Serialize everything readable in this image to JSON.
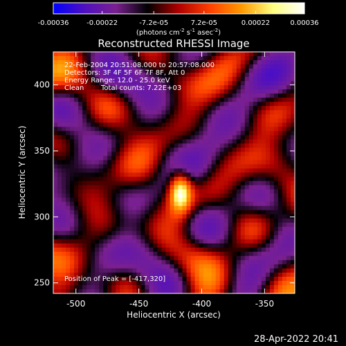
{
  "colorbar": {
    "ticks": [
      "-0.00036",
      "-0.00022",
      "-7.2e-05",
      "7.2e-05",
      "0.00022",
      "0.00036"
    ],
    "tick_values": [
      -0.00036,
      -0.00022,
      -7.2e-05,
      7.2e-05,
      0.00022,
      0.00036
    ],
    "range": [
      -0.00036,
      0.00036
    ],
    "unit_prefix": "(photons cm",
    "unit_exp1": "-2",
    "unit_mid": " s",
    "unit_exp2": "-1",
    "unit_mid2": " asec",
    "unit_exp3": "-2",
    "unit_suffix": ")",
    "colors": [
      "#0000ff",
      "#5010c0",
      "#7a2090",
      "#000000",
      "#b00000",
      "#ff4000",
      "#ff9a00",
      "#ffff80",
      "#ffffff"
    ]
  },
  "chart_data": {
    "type": "heatmap",
    "title": "Reconstructed RHESSI Image",
    "xlabel": "Heliocentric X (arcsec)",
    "ylabel": "Heliocentric Y (arcsec)",
    "xlim": [
      -518,
      -326
    ],
    "ylim": [
      242,
      425
    ],
    "x_ticks": [
      "-500",
      "-450",
      "-400",
      "-350"
    ],
    "x_tick_values": [
      -500,
      -450,
      -400,
      -350
    ],
    "y_ticks": [
      "250",
      "300",
      "350",
      "400"
    ],
    "y_tick_values": [
      250,
      300,
      350,
      400
    ],
    "info": {
      "line1": "22-Feb-2004 20:51:08.000 to 20:57:08.000",
      "line2": "Detectors: 3F 4F 5F 6F 7F 8F, Att 0",
      "line3": "Energy Range: 12.0 - 25.0 keV",
      "line4_a": "Clean",
      "line4_b": "Total counts: 7.22E+03"
    },
    "peak_label": "Position of Peak = [-417,320]",
    "peak": [
      -417,
      320
    ],
    "grid": false,
    "colormap": "blue-purple-black-red-yellow-white"
  },
  "timestamp": "28-Apr-2022 20:41"
}
